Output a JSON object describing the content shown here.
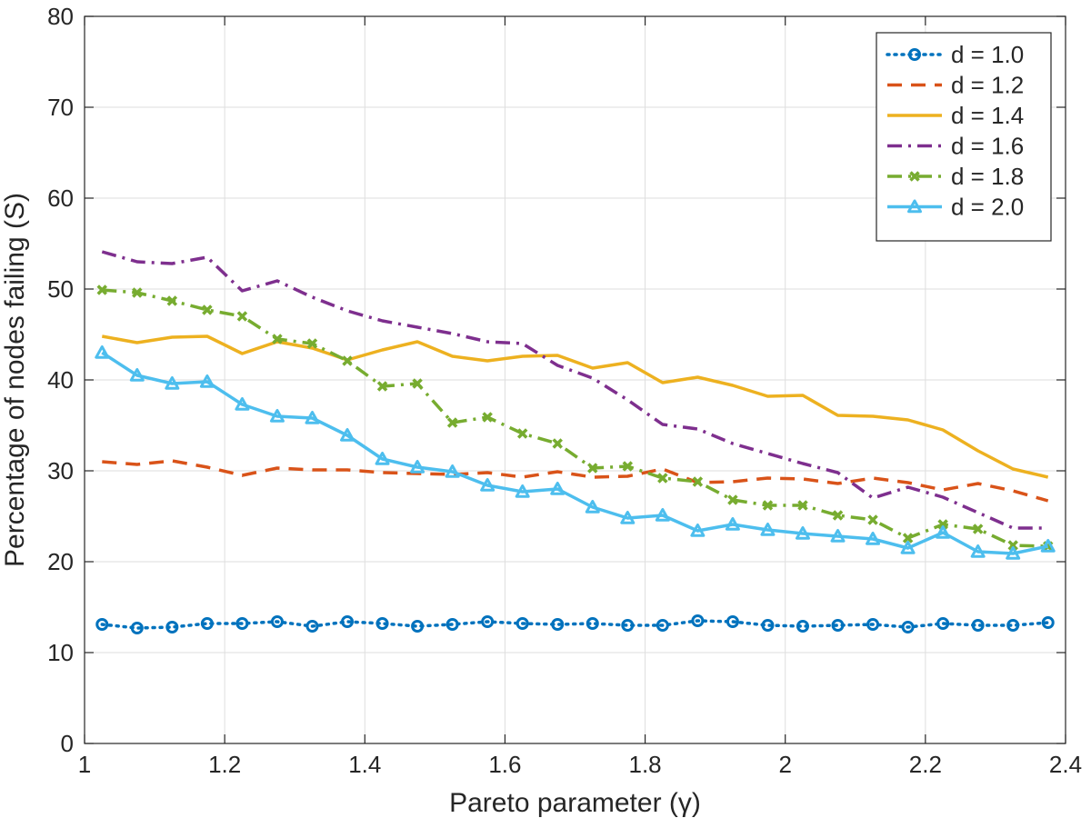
{
  "chart_data": {
    "type": "line",
    "title": "",
    "xlabel": "Pareto parameter (γ)",
    "ylabel": "Percentage of nodes failing (S)",
    "xlim": [
      1,
      2.4
    ],
    "ylim": [
      0,
      80
    ],
    "xticks": [
      1,
      1.2,
      1.4,
      1.6,
      1.8,
      2,
      2.2,
      2.4
    ],
    "xtick_labels": [
      "1",
      "1.2",
      "1.4",
      "1.6",
      "1.8",
      "2",
      "2.2",
      "2.4"
    ],
    "yticks": [
      0,
      10,
      20,
      30,
      40,
      50,
      60,
      70,
      80
    ],
    "ytick_labels": [
      "0",
      "10",
      "20",
      "30",
      "40",
      "50",
      "60",
      "70",
      "80"
    ],
    "grid": true,
    "legend_position": "top-right",
    "x": [
      1.025,
      1.075,
      1.125,
      1.175,
      1.225,
      1.275,
      1.325,
      1.375,
      1.425,
      1.475,
      1.525,
      1.575,
      1.625,
      1.675,
      1.725,
      1.775,
      1.825,
      1.875,
      1.925,
      1.975,
      2.025,
      2.075,
      2.125,
      2.175,
      2.225,
      2.275,
      2.325,
      2.375
    ],
    "series": [
      {
        "name": "d = 1.0",
        "color": "#0072BD",
        "dash": "dotted",
        "marker": "circle",
        "values": [
          13.1,
          12.7,
          12.8,
          13.2,
          13.2,
          13.4,
          12.9,
          13.4,
          13.2,
          12.9,
          13.1,
          13.4,
          13.2,
          13.1,
          13.2,
          13.0,
          13.0,
          13.5,
          13.4,
          13.0,
          12.9,
          13.0,
          13.1,
          12.8,
          13.2,
          13.0,
          13.0,
          13.3
        ]
      },
      {
        "name": "d = 1.2",
        "color": "#D95319",
        "dash": "dashed",
        "marker": "none",
        "values": [
          31.0,
          30.7,
          31.1,
          30.4,
          29.5,
          30.3,
          30.1,
          30.1,
          29.8,
          29.7,
          29.6,
          29.8,
          29.3,
          29.9,
          29.3,
          29.4,
          30.2,
          28.7,
          28.8,
          29.2,
          29.1,
          28.6,
          29.2,
          28.7,
          27.9,
          28.6,
          27.8,
          26.7
        ]
      },
      {
        "name": "d = 1.4",
        "color": "#EDB120",
        "dash": "solid",
        "marker": "none",
        "values": [
          44.8,
          44.1,
          44.7,
          44.8,
          42.9,
          44.2,
          43.5,
          42.2,
          43.3,
          44.2,
          42.6,
          42.1,
          42.6,
          42.7,
          41.3,
          41.9,
          39.7,
          40.3,
          39.4,
          38.2,
          38.3,
          36.1,
          36.0,
          35.6,
          34.5,
          32.2,
          30.2,
          29.3
        ]
      },
      {
        "name": "d = 1.6",
        "color": "#7E2F8E",
        "dash": "dashdot",
        "marker": "none",
        "values": [
          54.1,
          53.0,
          52.8,
          53.5,
          49.8,
          50.9,
          49.1,
          47.6,
          46.5,
          45.8,
          45.1,
          44.2,
          44.0,
          41.6,
          40.2,
          37.8,
          35.1,
          34.6,
          33.0,
          31.9,
          30.8,
          29.8,
          27.0,
          28.2,
          27.1,
          25.4,
          23.7,
          23.7
        ]
      },
      {
        "name": "d = 1.8",
        "color": "#77AC30",
        "dash": "dashdot",
        "marker": "x",
        "values": [
          49.9,
          49.6,
          48.7,
          47.7,
          47.0,
          44.5,
          44.0,
          42.1,
          39.3,
          39.6,
          35.3,
          35.9,
          34.1,
          33.0,
          30.3,
          30.5,
          29.2,
          28.8,
          26.8,
          26.2,
          26.2,
          25.1,
          24.6,
          22.6,
          24.1,
          23.6,
          21.8,
          21.7
        ]
      },
      {
        "name": "d = 2.0",
        "color": "#4DBEEE",
        "dash": "solid",
        "marker": "triangle",
        "values": [
          43.0,
          40.5,
          39.6,
          39.8,
          37.3,
          36.0,
          35.8,
          33.9,
          31.3,
          30.4,
          29.9,
          28.4,
          27.7,
          28.0,
          26.0,
          24.8,
          25.1,
          23.4,
          24.1,
          23.5,
          23.1,
          22.8,
          22.5,
          21.5,
          23.2,
          21.1,
          20.9,
          21.7
        ]
      }
    ]
  }
}
